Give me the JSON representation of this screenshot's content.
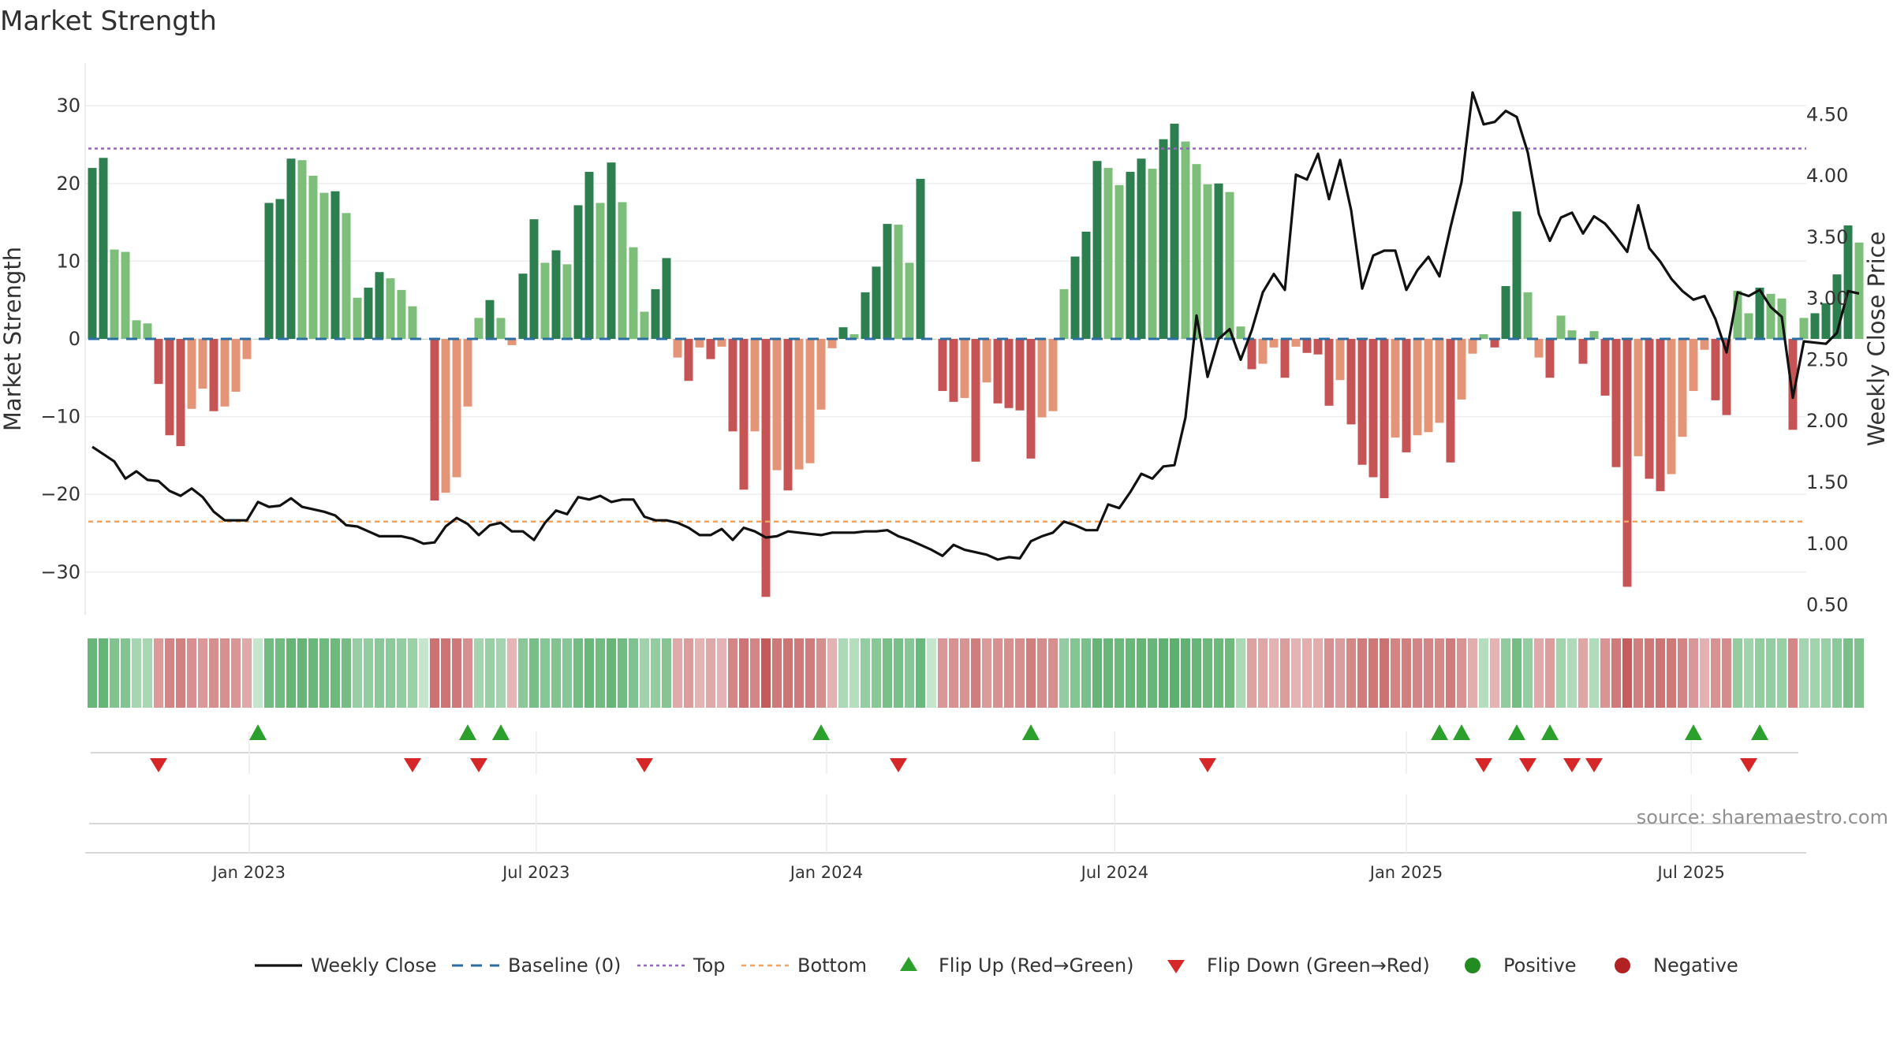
{
  "chart_data": {
    "type": "bar",
    "title": "Market Strength",
    "ylabel": "Market Strength",
    "y2label": "Weekly Close Price",
    "ylim": [
      -35.5,
      35.5
    ],
    "y2lim": [
      0.42,
      4.92
    ],
    "yticks": [
      30,
      20,
      10,
      0,
      -10,
      -20,
      -30
    ],
    "y2ticks": [
      "4.50",
      "4.00",
      "3.50",
      "3.00",
      "2.50",
      "2.00",
      "1.50",
      "1.00",
      "0.50"
    ],
    "top_level": 24.5,
    "bottom_level": -23.5,
    "xlabels": [
      "Jan 2023",
      "Jul 2023",
      "Jan 2024",
      "Jul 2024",
      "Jan 2025",
      "Jul 2025"
    ],
    "xlabel_weeks": [
      14.7,
      40.7,
      67.0,
      93.1,
      119.5,
      145.3
    ],
    "strength": [
      22,
      23.3,
      11.5,
      11.2,
      2.4,
      2,
      -5.8,
      -12.4,
      -13.8,
      -9,
      -6.4,
      -9.3,
      -8.7,
      -6.8,
      -2.6,
      0,
      17.5,
      18,
      23.2,
      23,
      21,
      18.8,
      19,
      16.2,
      5.3,
      6.6,
      8.6,
      7.8,
      6.3,
      4.2,
      0,
      -20.8,
      -19.8,
      -17.8,
      -8.7,
      2.7,
      5,
      2.7,
      -0.8,
      8.4,
      15.4,
      9.8,
      11.4,
      9.6,
      17.2,
      21.5,
      17.5,
      22.7,
      17.6,
      11.8,
      3.5,
      6.4,
      10.4,
      -2.4,
      -5.4,
      -1.1,
      -2.6,
      -1,
      -11.9,
      -19.4,
      -11.9,
      -33.2,
      -16.9,
      -19.5,
      -16.8,
      -16,
      -9.1,
      -1.2,
      1.5,
      0.6,
      6,
      9.3,
      14.8,
      14.7,
      9.8,
      20.6,
      0,
      -6.7,
      -8.1,
      -7.6,
      -15.8,
      -5.6,
      -8.3,
      -8.9,
      -9.2,
      -15.4,
      -10.1,
      -9.3,
      6.4,
      10.6,
      13.8,
      22.9,
      22,
      19.8,
      21.5,
      23.2,
      21.9,
      25.7,
      27.7,
      25.4,
      22.5,
      19.9,
      20,
      18.9,
      1.6,
      -3.9,
      -3.2,
      -1.1,
      -5,
      -1,
      -1.8,
      -2,
      -8.6,
      -5.3,
      -11,
      -16.2,
      -17.8,
      -20.5,
      -12.7,
      -14.6,
      -12.4,
      -12,
      -10.8,
      -15.9,
      -7.8,
      -1.9,
      0.6,
      -1.1,
      6.8,
      16.4,
      6,
      -2.4,
      -5,
      3,
      1.1,
      -3.2,
      1,
      -7.3,
      -16.5,
      -31.9,
      -15.1,
      -18,
      -19.6,
      -17.4,
      -12.6,
      -6.7,
      -1.4,
      -7.9,
      -9.8,
      6.2,
      3.3,
      6.6,
      5.8,
      5.2,
      -11.7,
      2.7,
      3.3,
      4.6,
      8.3,
      14.6,
      12.4
    ],
    "weekly_close": [
      1.79,
      1.73,
      1.67,
      1.53,
      1.59,
      1.52,
      1.51,
      1.43,
      1.39,
      1.45,
      1.38,
      1.26,
      1.19,
      1.19,
      1.19,
      1.34,
      1.3,
      1.31,
      1.37,
      1.3,
      1.28,
      1.26,
      1.23,
      1.15,
      1.14,
      1.1,
      1.06,
      1.06,
      1.06,
      1.04,
      1,
      1.01,
      1.14,
      1.21,
      1.16,
      1.07,
      1.15,
      1.17,
      1.1,
      1.1,
      1.03,
      1.17,
      1.27,
      1.24,
      1.38,
      1.36,
      1.39,
      1.34,
      1.36,
      1.36,
      1.22,
      1.19,
      1.19,
      1.17,
      1.13,
      1.07,
      1.07,
      1.12,
      1.03,
      1.13,
      1.1,
      1.05,
      1.06,
      1.1,
      1.09,
      1.08,
      1.07,
      1.09,
      1.09,
      1.09,
      1.1,
      1.1,
      1.11,
      1.06,
      1.03,
      0.99,
      0.95,
      0.9,
      0.99,
      0.95,
      0.93,
      0.91,
      0.87,
      0.89,
      0.88,
      1.02,
      1.06,
      1.09,
      1.18,
      1.15,
      1.11,
      1.11,
      1.32,
      1.29,
      1.42,
      1.57,
      1.53,
      1.63,
      1.64,
      2.03,
      2.86,
      2.36,
      2.67,
      2.75,
      2.5,
      2.74,
      3.05,
      3.2,
      3.07,
      4.01,
      3.97,
      4.18,
      3.81,
      4.13,
      3.72,
      3.08,
      3.35,
      3.39,
      3.39,
      3.07,
      3.23,
      3.34,
      3.18,
      3.58,
      3.95,
      4.68,
      4.42,
      4.44,
      4.53,
      4.48,
      4.19,
      3.69,
      3.47,
      3.66,
      3.7,
      3.53,
      3.67,
      3.61,
      3.5,
      3.38,
      3.76,
      3.41,
      3.3,
      3.16,
      3.06,
      2.99,
      3.02,
      2.83,
      2.56,
      3.05,
      3.02,
      3.07,
      2.93,
      2.85,
      2.19,
      2.65,
      2.64,
      2.63,
      2.72,
      3.06,
      3.04
    ],
    "flip_up": [
      15,
      34,
      37,
      66,
      85,
      122,
      124,
      129,
      132,
      145,
      151
    ],
    "flip_down": [
      6,
      29,
      35,
      50,
      73,
      101,
      126,
      130,
      134,
      136,
      150
    ],
    "legend": [
      "Weekly Close",
      "Baseline (0)",
      "Top",
      "Bottom",
      "Flip Up (Red→Green)",
      "Flip Down (Green→Red)",
      "Positive",
      "Negative"
    ],
    "colors": {
      "pos_dark": "#2e7f4f",
      "pos_light": "#7dbf7a",
      "neg_dark": "#c65454",
      "neg_light": "#e49578",
      "baseline": "#2c6ea3",
      "top": "#9467bd",
      "bottom": "#f4a460",
      "flip_up": "#2ca02c",
      "flip_down": "#d62728",
      "positive_dot": "#228b22",
      "negative_dot": "#b22222",
      "line": "#111111"
    }
  },
  "source": "source: sharemaestro.com"
}
